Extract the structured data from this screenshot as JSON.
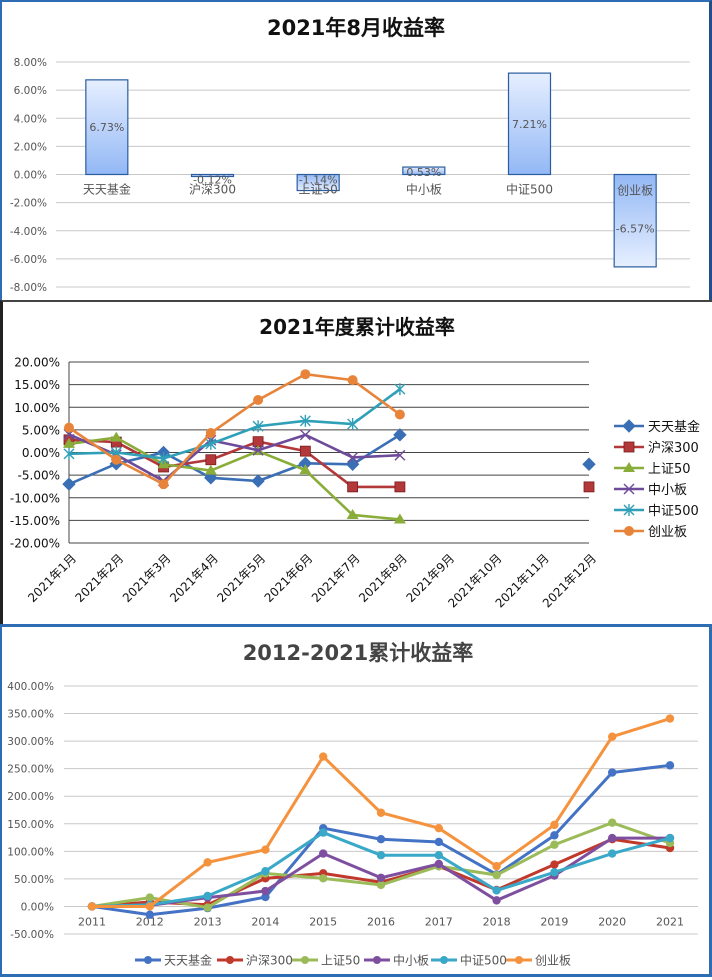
{
  "chart_data": [
    {
      "type": "bar",
      "title": "2021年8月收益率",
      "categories": [
        "天天基金",
        "沪深300",
        "上证50",
        "中小板",
        "中证500",
        "创业板"
      ],
      "values": [
        6.73,
        -0.12,
        -1.14,
        0.53,
        7.21,
        -6.57
      ],
      "value_labels": [
        "6.73%",
        "-0.12%",
        "-1.14%",
        "0.53%",
        "7.21%",
        "-6.57%"
      ],
      "xlabel": "",
      "ylabel": "",
      "ylim": [
        -8,
        8
      ],
      "yticks": [
        "8.00%",
        "6.00%",
        "4.00%",
        "2.00%",
        "0.00%",
        "-2.00%",
        "-4.00%",
        "-6.00%",
        "-8.00%"
      ],
      "grid": true,
      "legend": false
    },
    {
      "type": "line",
      "title": "2021年度累计收益率",
      "categories": [
        "2021年1月",
        "2021年2月",
        "2021年3月",
        "2021年4月",
        "2021年5月",
        "2021年6月",
        "2021年7月",
        "2021年8月",
        "2021年9月",
        "2021年10月",
        "2021年11月",
        "2021年12月"
      ],
      "series": [
        {
          "name": "天天基金",
          "color": "#3a6fb5",
          "marker": "diamond",
          "values": [
            -7.0,
            -2.5,
            0.0,
            -5.6,
            -6.3,
            -2.4,
            -2.6,
            3.9,
            null,
            null,
            null,
            -2.6
          ]
        },
        {
          "name": "沪深300",
          "color": "#b3383a",
          "marker": "square",
          "values": [
            2.8,
            2.3,
            -3.2,
            -1.6,
            2.4,
            0.3,
            -7.6,
            -7.6,
            null,
            null,
            null,
            -7.6
          ]
        },
        {
          "name": "上证50",
          "color": "#8aad3a",
          "marker": "triangle",
          "values": [
            1.9,
            3.3,
            -2.6,
            -4.0,
            0.3,
            -3.9,
            -13.8,
            -14.8,
            null,
            null,
            null,
            null
          ]
        },
        {
          "name": "中小板",
          "color": "#6e4a9a",
          "marker": "x",
          "values": [
            4.0,
            -0.5,
            -6.3,
            2.7,
            0.5,
            3.9,
            -1.1,
            -0.6,
            null,
            null,
            null,
            null
          ]
        },
        {
          "name": "中证500",
          "color": "#2fa0b8",
          "marker": "star",
          "values": [
            -0.3,
            0.0,
            -1.3,
            1.9,
            5.8,
            7.0,
            6.3,
            14.0,
            null,
            null,
            null,
            null
          ]
        },
        {
          "name": "创业板",
          "color": "#e8843a",
          "marker": "circle",
          "values": [
            5.5,
            -1.6,
            -7.0,
            4.3,
            11.6,
            17.3,
            16.0,
            8.4,
            null,
            null,
            null,
            null
          ]
        }
      ],
      "xlabel": "",
      "ylabel": "",
      "ylim": [
        -20,
        20
      ],
      "yticks": [
        "20.00%",
        "15.00%",
        "10.00%",
        "5.00%",
        "0.00%",
        "-5.00%",
        "-10.00%",
        "-15.00%",
        "-20.00%"
      ],
      "grid": true,
      "legend_position": "right"
    },
    {
      "type": "line",
      "title": "2012-2021累计收益率",
      "categories": [
        "2011",
        "2012",
        "2013",
        "2014",
        "2015",
        "2016",
        "2017",
        "2018",
        "2019",
        "2020",
        "2021"
      ],
      "series": [
        {
          "name": "天天基金",
          "color": "#4472c4",
          "values": [
            0,
            -15,
            -3,
            17,
            142,
            122,
            117,
            58,
            129,
            243,
            256
          ]
        },
        {
          "name": "沪深300",
          "color": "#c0392b",
          "values": [
            0,
            8,
            3,
            51,
            60,
            44,
            73,
            30,
            76,
            122,
            106
          ]
        },
        {
          "name": "上证50",
          "color": "#9bbb59",
          "values": [
            0,
            16,
            -2,
            60,
            51,
            39,
            73,
            57,
            112,
            152,
            115
          ]
        },
        {
          "name": "中小板",
          "color": "#7f4f9f",
          "values": [
            0,
            2,
            16,
            28,
            96,
            52,
            77,
            11,
            56,
            124,
            124
          ]
        },
        {
          "name": "中证500",
          "color": "#3aa8c8",
          "values": [
            0,
            3,
            19,
            64,
            134,
            93,
            93,
            29,
            62,
            96,
            124
          ]
        },
        {
          "name": "创业板",
          "color": "#f5923e",
          "values": [
            0,
            0,
            80,
            103,
            272,
            170,
            142,
            73,
            148,
            308,
            341
          ]
        }
      ],
      "xlabel": "",
      "ylabel": "",
      "ylim": [
        -50,
        400
      ],
      "yticks": [
        "400.00%",
        "350.00%",
        "300.00%",
        "250.00%",
        "200.00%",
        "150.00%",
        "100.00%",
        "50.00%",
        "0.00%",
        "-50.00%"
      ],
      "grid": true,
      "legend_position": "bottom"
    }
  ]
}
